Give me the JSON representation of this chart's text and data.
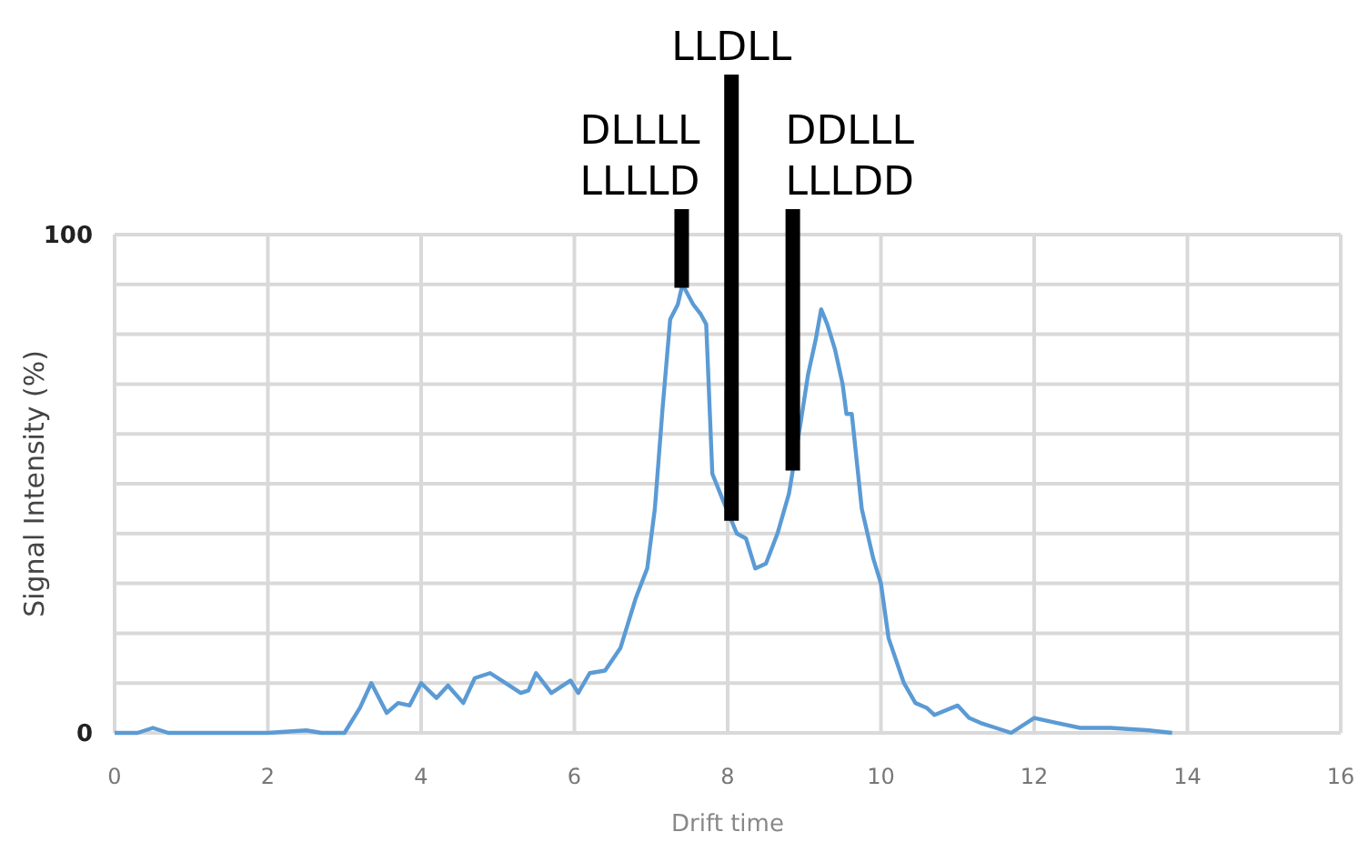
{
  "chart_data": {
    "type": "line",
    "xlabel": "Drift time",
    "ylabel": "Signal Intensity (%)",
    "xlim": [
      0,
      16
    ],
    "xticks": [
      0,
      2,
      4,
      6,
      8,
      10,
      12,
      14,
      16
    ],
    "ylim": [
      0,
      100
    ],
    "yticks": [
      0,
      {
        "value": 10,
        "label": null
      },
      {
        "value": 20,
        "label": null
      },
      {
        "value": 30,
        "label": null
      },
      {
        "value": 40,
        "label": null
      },
      {
        "value": 50,
        "label": null
      },
      {
        "value": 60,
        "label": null
      },
      {
        "value": 70,
        "label": null
      },
      {
        "value": 80,
        "label": null
      },
      {
        "value": 90,
        "label": null
      },
      100
    ],
    "grid": true,
    "marker": "none",
    "line_style": "solid",
    "series": [
      {
        "color": "#5b9bd5",
        "x": [
          0,
          0.3,
          0.5,
          0.7,
          1,
          2,
          2.5,
          2.7,
          3,
          3.2,
          3.35,
          3.55,
          3.7,
          3.85,
          4,
          4.2,
          4.35,
          4.55,
          4.7,
          4.9,
          5.1,
          5.3,
          5.4,
          5.5,
          5.7,
          5.95,
          6.05,
          6.2,
          6.4,
          6.6,
          6.8,
          6.95,
          7.05,
          7.15,
          7.25,
          7.35,
          7.41,
          7.55,
          7.65,
          7.72,
          7.8,
          7.93,
          8.12,
          8.24,
          8.36,
          8.5,
          8.65,
          8.8,
          8.95,
          9.05,
          9.15,
          9.22,
          9.3,
          9.4,
          9.5,
          9.55,
          9.62,
          9.75,
          9.9,
          10,
          10.1,
          10.3,
          10.45,
          10.6,
          10.7,
          11,
          11.15,
          11.3,
          11.5,
          11.7,
          12,
          12.3,
          12.6,
          13,
          13.5,
          13.8
        ],
        "values": [
          0,
          0,
          1,
          0,
          0,
          0,
          0.5,
          0,
          0,
          5,
          10,
          4,
          6,
          5.5,
          10,
          7,
          9.5,
          6,
          11,
          12,
          10,
          8,
          8.5,
          12,
          8,
          10.5,
          8,
          12,
          12.5,
          17,
          27,
          33,
          45,
          65,
          83,
          86,
          90,
          86,
          84,
          82,
          52,
          47,
          40,
          39,
          33,
          34,
          40,
          48,
          62,
          72,
          79,
          85,
          82,
          77,
          70,
          64,
          64,
          45,
          35,
          30,
          19,
          10,
          6,
          5,
          3.6,
          5.5,
          3,
          2,
          1,
          0,
          3,
          2,
          1,
          1,
          0.5,
          0
        ]
      }
    ],
    "ref_lines": [
      {
        "axis": "x",
        "value": 7.4,
        "label": "DLLLL\nLLLLD",
        "color": "#000000"
      },
      {
        "axis": "x",
        "value": 8.05,
        "label": "LLDLL",
        "color": "#000000"
      },
      {
        "axis": "x",
        "value": 8.85,
        "label": "DDLLL\nLLLDD",
        "color": "#000000"
      }
    ]
  }
}
